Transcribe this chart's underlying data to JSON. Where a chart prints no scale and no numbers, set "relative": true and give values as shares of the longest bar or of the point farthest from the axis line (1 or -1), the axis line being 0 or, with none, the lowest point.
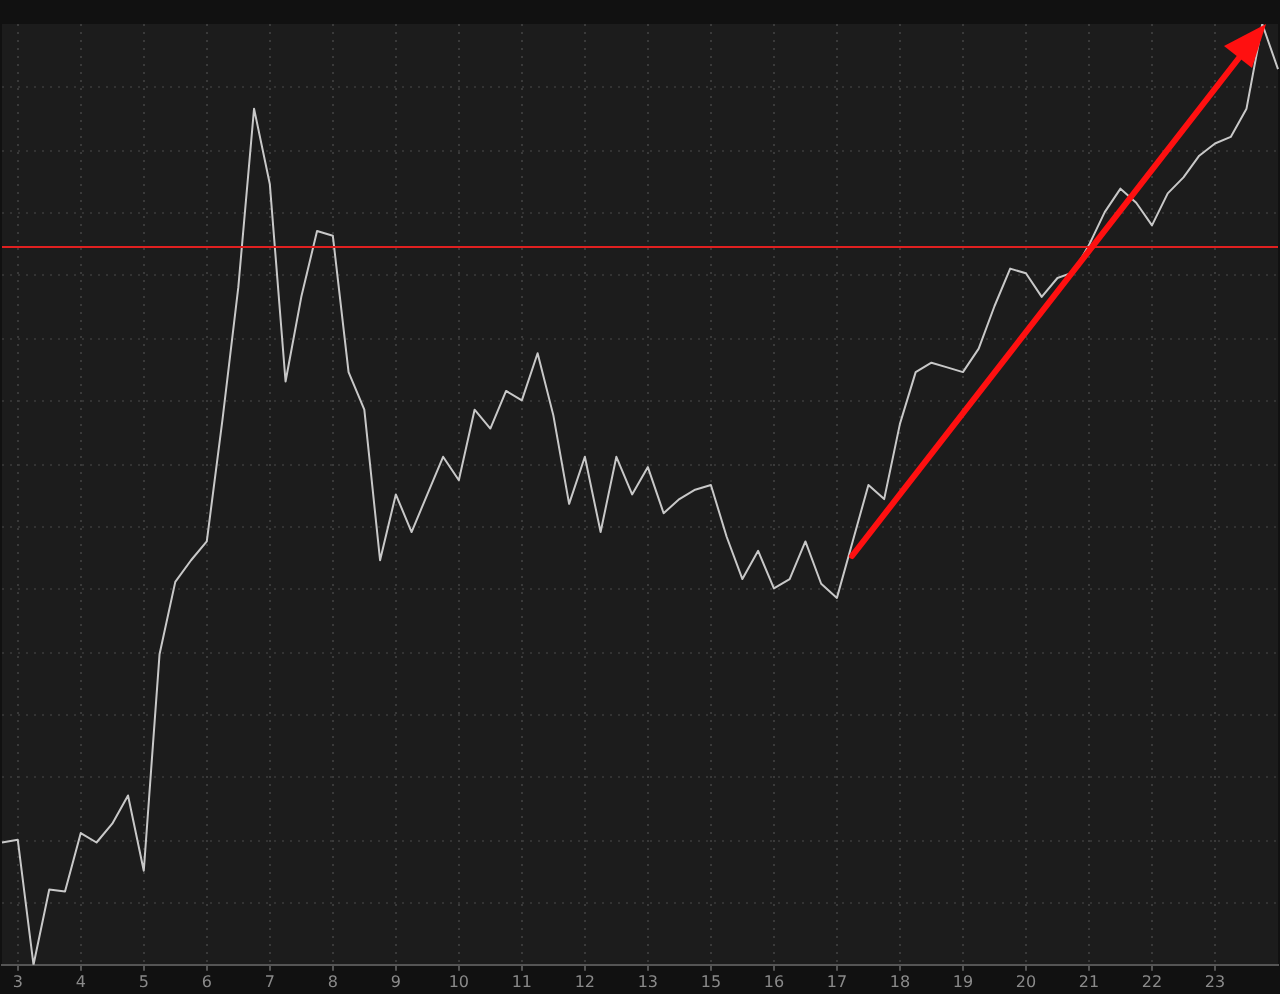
{
  "chart_data": {
    "type": "line",
    "relative": true,
    "grid": true,
    "legend": false,
    "marker": "none",
    "line_style": "solid",
    "categories": [
      null,
      "3",
      null,
      null,
      null,
      "4",
      null,
      null,
      null,
      "5",
      null,
      null,
      null,
      "6",
      null,
      null,
      null,
      "7",
      null,
      null,
      null,
      "8",
      null,
      null,
      null,
      "9",
      null,
      null,
      null,
      "10",
      null,
      null,
      null,
      "11",
      null,
      null,
      null,
      "12",
      null,
      null,
      null,
      "13",
      null,
      null,
      null,
      "15",
      null,
      null,
      null,
      "16",
      null,
      null,
      null,
      "17",
      null,
      null,
      null,
      "18",
      null,
      null,
      null,
      "19",
      null,
      null,
      null,
      "20",
      null,
      null,
      null,
      "21",
      null,
      null,
      null,
      "22",
      null,
      null,
      null,
      "23",
      null,
      null,
      null,
      null
    ],
    "ref_lines": [
      {
        "axis": "y",
        "value": 0.763,
        "color": "#e02020"
      }
    ],
    "series": [
      {
        "color": "#c8c8c8",
        "values": [
          0.13,
          0.133,
          0,
          0.08,
          0.078,
          0.14,
          0.13,
          0.15,
          0.18,
          0.1,
          0.33,
          0.407,
          0.43,
          0.45,
          0.58,
          0.72,
          0.91,
          0.83,
          0.62,
          0.71,
          0.78,
          0.775,
          0.63,
          0.59,
          0.43,
          0.5,
          0.46,
          0.5,
          0.54,
          0.515,
          0.59,
          0.57,
          0.61,
          0.6,
          0.65,
          0.584,
          0.49,
          0.54,
          0.46,
          0.54,
          0.5,
          0.529,
          0.48,
          0.495,
          0.505,
          0.51,
          0.455,
          0.41,
          0.44,
          0.4,
          0.41,
          0.45,
          0.405,
          0.39,
          0.45,
          0.51,
          0.495,
          0.575,
          0.63,
          0.64,
          0.635,
          0.63,
          0.655,
          0.7,
          0.74,
          0.735,
          0.71,
          0.73,
          0.736,
          0.765,
          0.8,
          0.825,
          0.81,
          0.786,
          0.82,
          0.837,
          0.86,
          0.873,
          0.88,
          0.91,
          1,
          0.952
        ]
      }
    ]
  }
}
